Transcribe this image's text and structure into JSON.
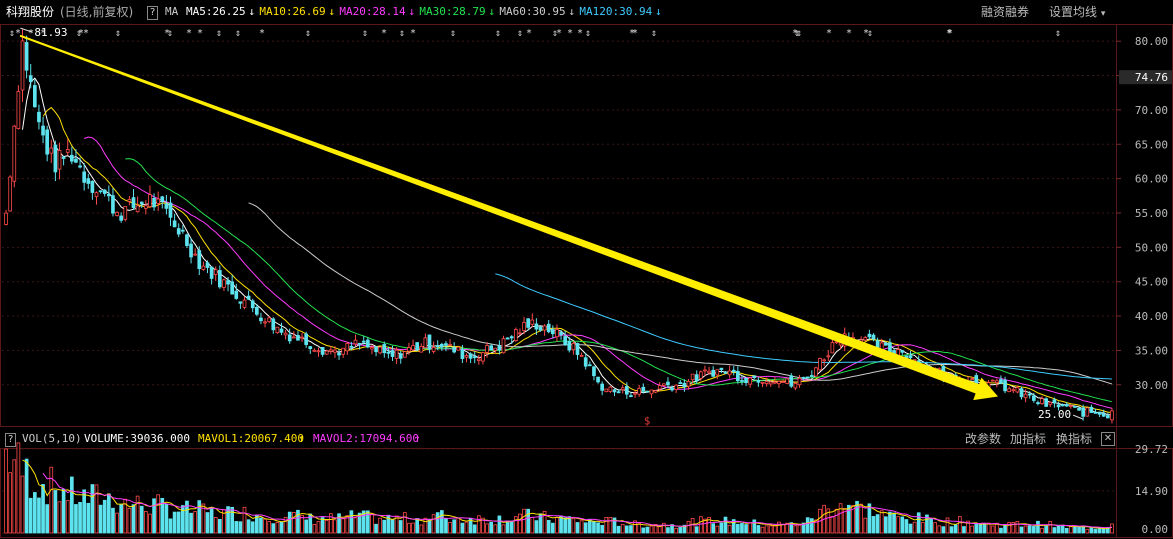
{
  "header": {
    "stock_name": "科翔股份",
    "mode": "(日线,前复权)",
    "help": "?",
    "ma_label": "MA",
    "ma_items": [
      {
        "text": "MA5:26.25",
        "arrow": "↓",
        "color": "#ffffff"
      },
      {
        "text": "MA10:26.69",
        "arrow": "↓",
        "color": "#ffe100"
      },
      {
        "text": "MA20:28.14",
        "arrow": "↓",
        "color": "#ff3cff"
      },
      {
        "text": "MA30:28.79",
        "arrow": "↓",
        "color": "#23e34f"
      },
      {
        "text": "MA60:30.95",
        "arrow": "↓",
        "color": "#cccccc"
      },
      {
        "text": "MA120:30.94",
        "arrow": "↓",
        "color": "#3ecbff"
      }
    ],
    "margin_button": "融资融券",
    "settings_button": "设置均线",
    "settings_caret": "▾"
  },
  "volume_header": {
    "help": "?",
    "label": "VOL(5,10)",
    "volume": "VOLUME:39036.000",
    "mavol1": "MAVOL1:20067.400",
    "mavol1_arrow": "↑",
    "mavol2": "MAVOL2:17094.600",
    "mavol2_arrow": "↑",
    "buttons": [
      "改参数",
      "加指标",
      "换指标"
    ],
    "close": "✕"
  },
  "chart_data": {
    "type": "candlestick",
    "price_axis": {
      "ticks": [
        "80.00",
        "75.00",
        "70.00",
        "65.00",
        "60.00",
        "55.00",
        "50.00",
        "45.00",
        "40.00",
        "35.00",
        "30.00"
      ],
      "range": [
        24,
        82.5
      ],
      "current_price_label": "74.76"
    },
    "volume_axis": {
      "ticks": [
        "29.72",
        "14.90",
        "0.00"
      ],
      "range": [
        0,
        29.72
      ]
    },
    "annotations": {
      "high_label": "81.93",
      "low_label": "25.00",
      "marker": "$",
      "marker_color": "#e23b3b"
    },
    "trend_arrow": {
      "from_price": 80.8,
      "to_price": 28.3,
      "color": "#ffee00"
    },
    "colors": {
      "up": "#ff4a4a",
      "down": "#5de3ee",
      "background": "#000000",
      "grid": "#3a1515"
    },
    "price_path": [
      55,
      80,
      68,
      62,
      64,
      60,
      58,
      55,
      56,
      57,
      55,
      52,
      48,
      46,
      44,
      42,
      40,
      38,
      37,
      36,
      35,
      35,
      36,
      35,
      34,
      35,
      36,
      36,
      35,
      34,
      35,
      36,
      38,
      39,
      38,
      36,
      34,
      30,
      29,
      29,
      29,
      30,
      30,
      31,
      32,
      32,
      31,
      31,
      31,
      30,
      31,
      34,
      37,
      37,
      36,
      35,
      35,
      33,
      32,
      31,
      31,
      30,
      30,
      29,
      28,
      27,
      27,
      26,
      26,
      25.5
    ],
    "volume_path": [
      29.7,
      22,
      18,
      16,
      14,
      12,
      13,
      11,
      10,
      10,
      9,
      8,
      8,
      7,
      7,
      7,
      6,
      6,
      6,
      5,
      5,
      5,
      6,
      5,
      5,
      5,
      5,
      6,
      5,
      5,
      5,
      5,
      6,
      6,
      5,
      5,
      4,
      4,
      4,
      3,
      3,
      3,
      3,
      4,
      4,
      4,
      4,
      3,
      3,
      3,
      4,
      8,
      11,
      9,
      8,
      6,
      5,
      5,
      4,
      4,
      4,
      3,
      3,
      3,
      3,
      3,
      2,
      2,
      2,
      3
    ]
  }
}
